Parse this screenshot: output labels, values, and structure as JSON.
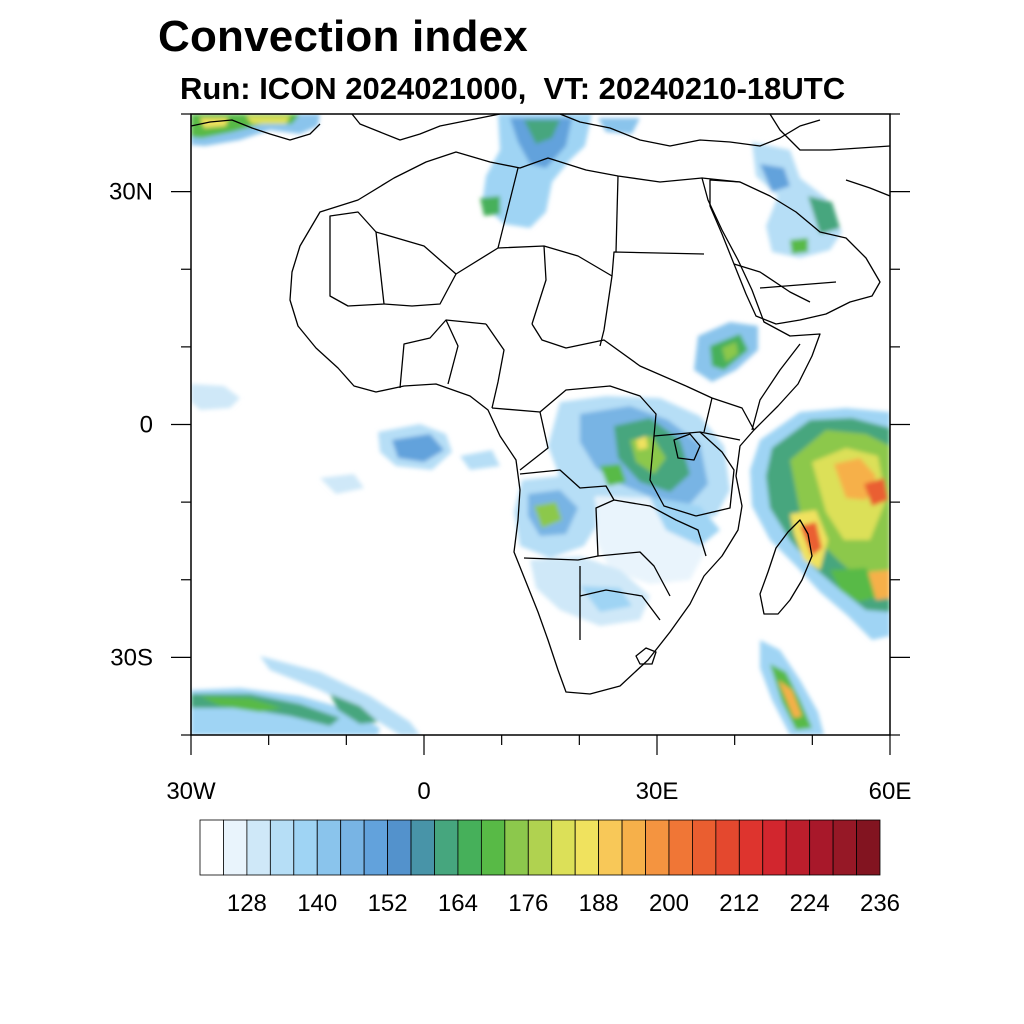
{
  "title": "Convection index",
  "subtitle": "Run: ICON 2024021000,  VT: 20240210-18UTC",
  "map": {
    "lon_range": [
      -30,
      60
    ],
    "lat_range": [
      -40,
      40
    ],
    "lat_labels": [
      {
        "value": 30,
        "text": "30N"
      },
      {
        "value": 0,
        "text": "0"
      },
      {
        "value": -30,
        "text": "30S"
      }
    ],
    "lon_labels": [
      {
        "value": -30,
        "text": "30W"
      },
      {
        "value": 0,
        "text": "0"
      },
      {
        "value": 30,
        "text": "30E"
      },
      {
        "value": 60,
        "text": "60E"
      }
    ]
  },
  "colorbar": {
    "colors": [
      "#ffffff",
      "#e9f4fc",
      "#cfe8f8",
      "#b6def6",
      "#9fd4f4",
      "#8ac4ec",
      "#78b4e4",
      "#62a2dc",
      "#5392cc",
      "#4894a8",
      "#46a67e",
      "#46b05a",
      "#58ba46",
      "#8cc84c",
      "#b0d250",
      "#dce058",
      "#f0e25e",
      "#f8c858",
      "#f6b04a",
      "#f49440",
      "#f07636",
      "#ea5e30",
      "#e4482e",
      "#de342e",
      "#d2262e",
      "#bc1e2c",
      "#a8182a",
      "#961826",
      "#821420"
    ],
    "tick_labels": [
      "128",
      "140",
      "152",
      "164",
      "176",
      "188",
      "200",
      "212",
      "224",
      "236"
    ]
  }
}
